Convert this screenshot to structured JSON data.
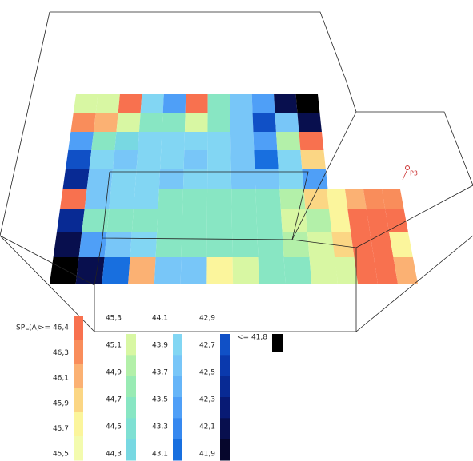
{
  "view": {
    "point_label": "P3"
  },
  "legend": {
    "title": "SPL(A)",
    "columns": [
      [
        {
          "label": ">= 46,4",
          "color": "#f8714f"
        },
        {
          "label": "46,3",
          "color": "#f98d5b"
        },
        {
          "label": "46,1",
          "color": "#fbb173"
        },
        {
          "label": "45,9",
          "color": "#fbd684"
        },
        {
          "label": "45,7",
          "color": "#fbf59c"
        },
        {
          "label": "45,5",
          "color": "#f3fbae"
        }
      ],
      [
        {
          "label": "45,3",
          "color": "#d8f7a3"
        },
        {
          "label": "45,1",
          "color": "#b3f0a9"
        },
        {
          "label": "44,9",
          "color": "#99ebb4"
        },
        {
          "label": "44,7",
          "color": "#88e6c3"
        },
        {
          "label": "44,5",
          "color": "#7fe0d3"
        },
        {
          "label": "44,3",
          "color": "#78d8e2"
        }
      ],
      [
        {
          "label": "44,1",
          "color": "#82d6f3"
        },
        {
          "label": "43,9",
          "color": "#78c6f8"
        },
        {
          "label": "43,7",
          "color": "#66b5f8"
        },
        {
          "label": "43,5",
          "color": "#4f9ff7"
        },
        {
          "label": "43,3",
          "color": "#3688ef"
        },
        {
          "label": "43,1",
          "color": "#186fdf"
        }
      ],
      [
        {
          "label": "42,9",
          "color": "#1050c6"
        },
        {
          "label": "42,7",
          "color": "#0a39ad"
        },
        {
          "label": "42,5",
          "color": "#082a94"
        },
        {
          "label": "42,3",
          "color": "#081a74"
        },
        {
          "label": "42,1",
          "color": "#080f4e"
        },
        {
          "label": "41,9",
          "color": "#06062c"
        }
      ],
      [
        {
          "label": "<= 41,8",
          "color": "#000000"
        }
      ]
    ]
  }
}
